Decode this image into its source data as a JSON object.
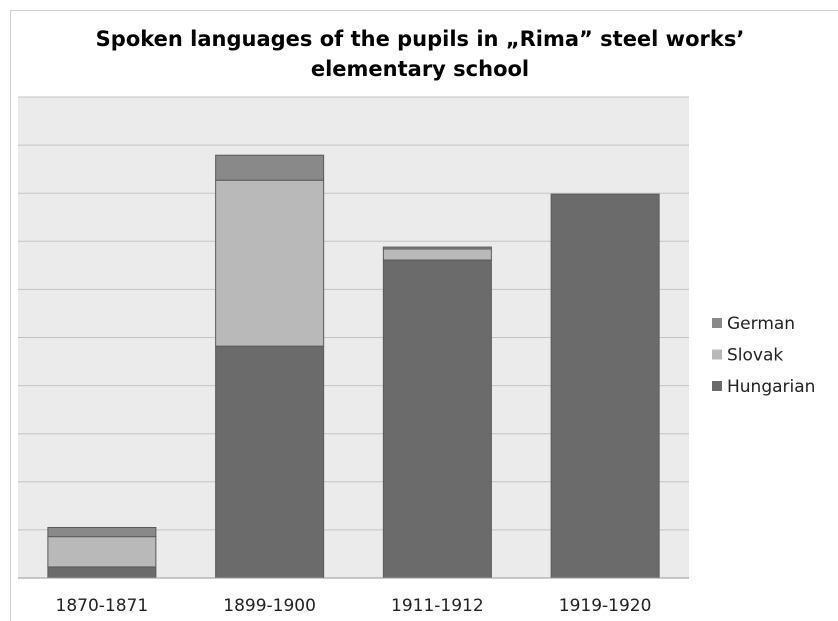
{
  "chart_data": {
    "type": "stacked_bar",
    "title": "Spoken languages of the pupils in „Rima” steel works’ elementary school",
    "categories": [
      "1870-1871",
      "1899-1900",
      "1911-1912",
      "1919-1920"
    ],
    "series": [
      {
        "name": "Hungarian",
        "color": "#6b6b6b",
        "values": [
          0.23,
          4.82,
          6.61,
          7.98
        ]
      },
      {
        "name": "Slovak",
        "color": "#b9b9b9",
        "values": [
          0.63,
          3.45,
          0.23,
          0
        ]
      },
      {
        "name": "German",
        "color": "#898989",
        "values": [
          0.19,
          0.52,
          0.04,
          0
        ]
      }
    ],
    "ylim": [
      0,
      10
    ],
    "yticks": [
      0,
      1,
      2,
      3,
      4,
      5,
      6,
      7,
      8,
      9,
      10
    ],
    "grid": true,
    "legend": "right"
  }
}
